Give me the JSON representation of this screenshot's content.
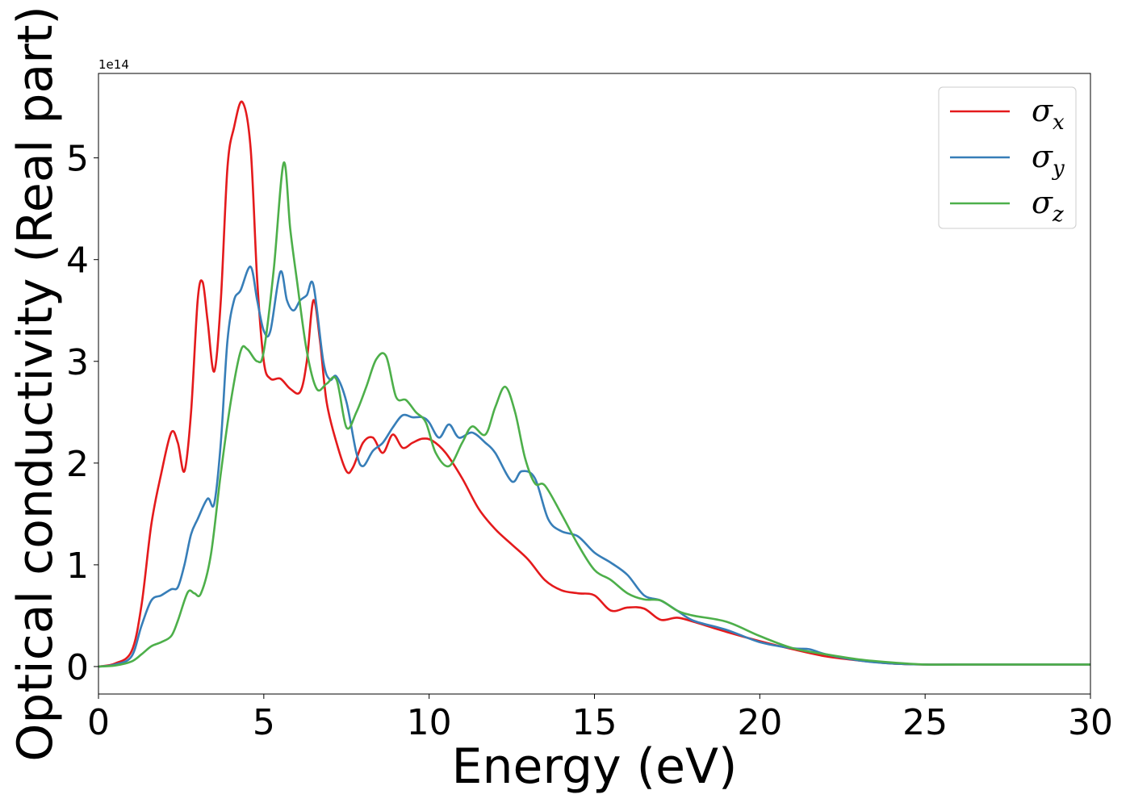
{
  "chart_data": {
    "type": "line",
    "title": "",
    "xlabel": "Energy (eV)",
    "ylabel": "Optical conductivity (Real part)",
    "y_offset_text": "1e14",
    "xlim": [
      0,
      30
    ],
    "ylim": [
      -0.27,
      5.83
    ],
    "x_ticks": [
      0,
      5,
      10,
      15,
      20,
      25,
      30
    ],
    "x_tick_labels": [
      "0",
      "5",
      "10",
      "15",
      "20",
      "25",
      "30"
    ],
    "y_ticks": [
      0,
      1,
      2,
      3,
      4,
      5
    ],
    "y_tick_labels": [
      "0",
      "1",
      "2",
      "3",
      "4",
      "5"
    ],
    "grid": false,
    "legend_position": "top-right",
    "series": [
      {
        "name": "σx",
        "label_main": "σ",
        "label_sub": "x",
        "color": "#e41a1c",
        "x": [
          0,
          0.5,
          1.0,
          1.3,
          1.6,
          1.9,
          2.2,
          2.4,
          2.6,
          2.8,
          3.0,
          3.15,
          3.3,
          3.5,
          3.7,
          3.9,
          4.1,
          4.35,
          4.6,
          4.8,
          5.0,
          5.2,
          5.5,
          5.8,
          6.1,
          6.3,
          6.5,
          6.7,
          6.9,
          7.2,
          7.5,
          7.7,
          8.0,
          8.3,
          8.6,
          8.9,
          9.2,
          9.5,
          9.8,
          10.1,
          10.5,
          11.0,
          11.5,
          12.0,
          12.5,
          13.0,
          13.5,
          14.0,
          14.5,
          15.0,
          15.5,
          16.0,
          16.5,
          17.0,
          17.5,
          18.0,
          19.0,
          20.0,
          21.0,
          22.0,
          23.0,
          24.0,
          25.0,
          26.0,
          27.0,
          28.0,
          29.0,
          30.0
        ],
        "y": [
          0,
          0.03,
          0.15,
          0.6,
          1.4,
          1.9,
          2.3,
          2.2,
          1.92,
          2.5,
          3.6,
          3.78,
          3.4,
          2.9,
          3.6,
          4.9,
          5.3,
          5.55,
          5.1,
          3.8,
          3.0,
          2.83,
          2.83,
          2.73,
          2.7,
          3.0,
          3.6,
          3.2,
          2.6,
          2.2,
          1.92,
          1.96,
          2.2,
          2.25,
          2.1,
          2.28,
          2.15,
          2.2,
          2.24,
          2.22,
          2.1,
          1.85,
          1.55,
          1.35,
          1.2,
          1.05,
          0.85,
          0.75,
          0.72,
          0.7,
          0.55,
          0.58,
          0.57,
          0.46,
          0.48,
          0.44,
          0.34,
          0.25,
          0.17,
          0.1,
          0.06,
          0.03,
          0.02,
          0.02,
          0.02,
          0.02,
          0.02,
          0.02
        ]
      },
      {
        "name": "σy",
        "label_main": "σ",
        "label_sub": "y",
        "color": "#377eb8",
        "x": [
          0,
          0.5,
          1.0,
          1.3,
          1.6,
          1.9,
          2.2,
          2.4,
          2.6,
          2.8,
          3.0,
          3.3,
          3.5,
          3.7,
          3.9,
          4.1,
          4.3,
          4.6,
          4.8,
          5.0,
          5.2,
          5.5,
          5.7,
          5.9,
          6.1,
          6.3,
          6.5,
          6.8,
          7.0,
          7.2,
          7.5,
          7.8,
          8.0,
          8.3,
          8.6,
          8.9,
          9.2,
          9.5,
          9.8,
          10.0,
          10.3,
          10.6,
          10.9,
          11.3,
          11.7,
          12.0,
          12.5,
          12.8,
          13.2,
          13.6,
          14.0,
          14.5,
          15.0,
          15.5,
          16.0,
          16.5,
          17.0,
          17.5,
          18.0,
          19.0,
          20.0,
          21.0,
          21.5,
          22.0,
          23.0,
          24.0,
          25.0,
          26.0,
          27.0,
          28.0,
          29.0,
          30.0
        ],
        "y": [
          0,
          0.02,
          0.1,
          0.4,
          0.65,
          0.7,
          0.76,
          0.78,
          1.0,
          1.3,
          1.45,
          1.65,
          1.6,
          2.2,
          3.2,
          3.6,
          3.7,
          3.93,
          3.6,
          3.3,
          3.3,
          3.88,
          3.6,
          3.5,
          3.6,
          3.65,
          3.75,
          3.0,
          2.82,
          2.85,
          2.6,
          2.1,
          1.97,
          2.12,
          2.2,
          2.35,
          2.47,
          2.45,
          2.45,
          2.4,
          2.25,
          2.38,
          2.25,
          2.3,
          2.2,
          2.1,
          1.82,
          1.92,
          1.85,
          1.45,
          1.33,
          1.28,
          1.12,
          1.02,
          0.9,
          0.7,
          0.65,
          0.55,
          0.45,
          0.36,
          0.24,
          0.18,
          0.17,
          0.12,
          0.06,
          0.03,
          0.02,
          0.02,
          0.02,
          0.02,
          0.02,
          0.02
        ]
      },
      {
        "name": "σz",
        "label_main": "σ",
        "label_sub": "z",
        "color": "#4daf4a",
        "x": [
          0,
          0.5,
          1.0,
          1.3,
          1.6,
          1.9,
          2.2,
          2.4,
          2.7,
          2.9,
          3.1,
          3.4,
          3.7,
          4.0,
          4.3,
          4.5,
          4.8,
          5.0,
          5.3,
          5.6,
          5.8,
          6.0,
          6.3,
          6.6,
          6.9,
          7.2,
          7.5,
          7.8,
          8.1,
          8.4,
          8.7,
          9.0,
          9.3,
          9.6,
          9.9,
          10.2,
          10.6,
          11.0,
          11.3,
          11.7,
          12.0,
          12.3,
          12.6,
          12.9,
          13.2,
          13.5,
          14.0,
          14.5,
          15.0,
          15.5,
          16.0,
          16.5,
          17.0,
          17.5,
          18.0,
          19.0,
          20.0,
          21.0,
          22.0,
          23.0,
          24.0,
          25.0,
          26.0,
          27.0,
          28.0,
          29.0,
          30.0
        ],
        "y": [
          0,
          0.01,
          0.05,
          0.12,
          0.2,
          0.24,
          0.3,
          0.45,
          0.73,
          0.72,
          0.72,
          1.1,
          1.9,
          2.6,
          3.1,
          3.12,
          3.0,
          3.1,
          3.9,
          4.95,
          4.3,
          3.8,
          3.1,
          2.73,
          2.78,
          2.82,
          2.35,
          2.5,
          2.75,
          3.02,
          3.05,
          2.65,
          2.62,
          2.5,
          2.4,
          2.1,
          1.97,
          2.2,
          2.36,
          2.28,
          2.55,
          2.75,
          2.5,
          2.05,
          1.8,
          1.78,
          1.5,
          1.2,
          0.95,
          0.85,
          0.72,
          0.66,
          0.65,
          0.55,
          0.5,
          0.44,
          0.3,
          0.18,
          0.12,
          0.07,
          0.04,
          0.02,
          0.02,
          0.02,
          0.02,
          0.02,
          0.02
        ]
      }
    ]
  }
}
